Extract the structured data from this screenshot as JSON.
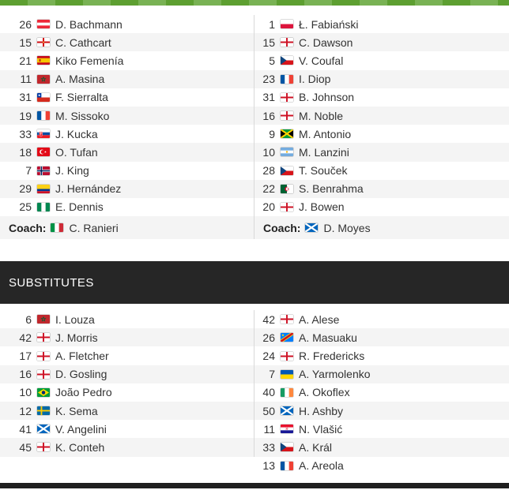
{
  "colors": {
    "green_light": "#79b254",
    "green_dark": "#5d9f31",
    "stripe": "#f4f4f4",
    "divider": "#d9d9d9",
    "header_bg": "#262626",
    "header_text": "#ffffff",
    "bottom_bar": "#1f1f1f",
    "text": "#333333"
  },
  "lineups": {
    "home": {
      "players": [
        {
          "number": "26",
          "country": "austria",
          "name": "D. Bachmann"
        },
        {
          "number": "15",
          "country": "northern-ireland",
          "name": "C. Cathcart"
        },
        {
          "number": "21",
          "country": "spain",
          "name": "Kiko Femenía"
        },
        {
          "number": "11",
          "country": "morocco",
          "name": "A. Masina"
        },
        {
          "number": "31",
          "country": "chile",
          "name": "F. Sierralta"
        },
        {
          "number": "19",
          "country": "france",
          "name": "M. Sissoko"
        },
        {
          "number": "33",
          "country": "slovakia",
          "name": "J. Kucka"
        },
        {
          "number": "18",
          "country": "turkey",
          "name": "O. Tufan"
        },
        {
          "number": "7",
          "country": "norway",
          "name": "J. King"
        },
        {
          "number": "29",
          "country": "colombia",
          "name": "J. Hernández"
        },
        {
          "number": "25",
          "country": "nigeria",
          "name": "E. Dennis"
        }
      ],
      "coach": {
        "label": "Coach:",
        "country": "italy",
        "name": "C. Ranieri"
      }
    },
    "away": {
      "players": [
        {
          "number": "1",
          "country": "poland",
          "name": "Ł. Fabiański"
        },
        {
          "number": "15",
          "country": "england",
          "name": "C. Dawson"
        },
        {
          "number": "5",
          "country": "czechia",
          "name": "V. Coufal"
        },
        {
          "number": "23",
          "country": "france",
          "name": "I. Diop"
        },
        {
          "number": "31",
          "country": "england",
          "name": "B. Johnson"
        },
        {
          "number": "16",
          "country": "england",
          "name": "M. Noble"
        },
        {
          "number": "9",
          "country": "jamaica",
          "name": "M. Antonio"
        },
        {
          "number": "10",
          "country": "argentina",
          "name": "M. Lanzini"
        },
        {
          "number": "28",
          "country": "czechia",
          "name": "T. Souček"
        },
        {
          "number": "22",
          "country": "algeria",
          "name": "S. Benrahma"
        },
        {
          "number": "20",
          "country": "england",
          "name": "J. Bowen"
        }
      ],
      "coach": {
        "label": "Coach:",
        "country": "scotland",
        "name": "D. Moyes"
      }
    }
  },
  "substitutes": {
    "title": "SUBSTITUTES",
    "home": [
      {
        "number": "6",
        "country": "morocco",
        "name": "I. Louza"
      },
      {
        "number": "42",
        "country": "england",
        "name": "J. Morris"
      },
      {
        "number": "17",
        "country": "england",
        "name": "A. Fletcher"
      },
      {
        "number": "16",
        "country": "england",
        "name": "D. Gosling"
      },
      {
        "number": "10",
        "country": "brazil",
        "name": "João Pedro"
      },
      {
        "number": "12",
        "country": "sweden",
        "name": "K. Sema"
      },
      {
        "number": "41",
        "country": "scotland",
        "name": "V. Angelini"
      },
      {
        "number": "45",
        "country": "england",
        "name": "K. Conteh"
      }
    ],
    "away": [
      {
        "number": "42",
        "country": "england",
        "name": "A. Alese"
      },
      {
        "number": "26",
        "country": "dr-congo",
        "name": "A. Masuaku"
      },
      {
        "number": "24",
        "country": "england",
        "name": "R. Fredericks"
      },
      {
        "number": "7",
        "country": "ukraine",
        "name": "A. Yarmolenko"
      },
      {
        "number": "40",
        "country": "ireland",
        "name": "A. Okoflex"
      },
      {
        "number": "50",
        "country": "scotland",
        "name": "H. Ashby"
      },
      {
        "number": "11",
        "country": "croatia",
        "name": "N. Vlašić"
      },
      {
        "number": "33",
        "country": "czechia",
        "name": "A. Král"
      },
      {
        "number": "13",
        "country": "france",
        "name": "A. Areola"
      }
    ]
  }
}
